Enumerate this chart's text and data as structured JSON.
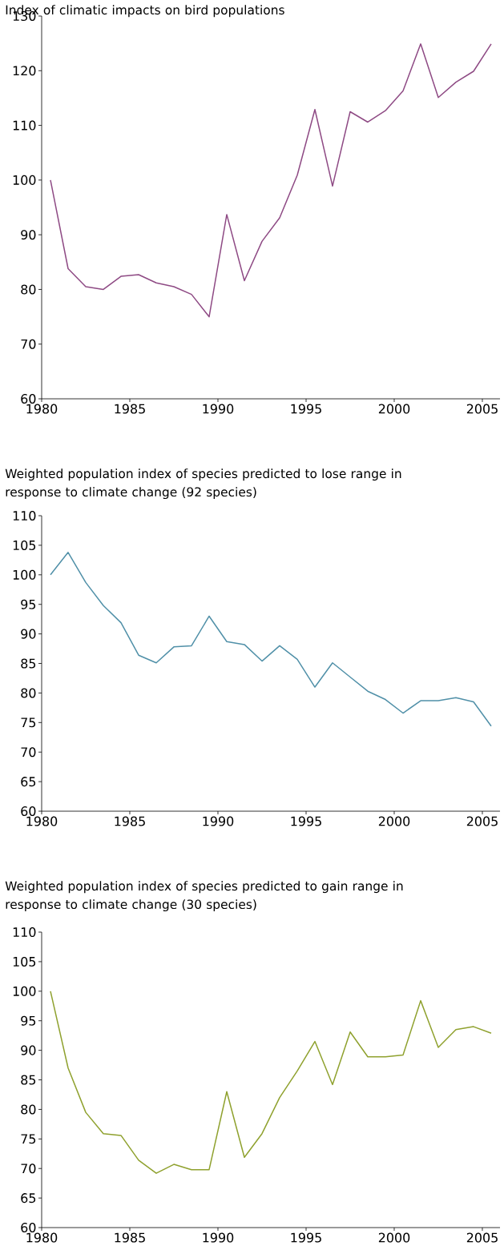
{
  "chart_data": [
    {
      "type": "line",
      "title": "Index of climatic impacts on bird populations",
      "x": [
        1980.5,
        1981.5,
        1982.5,
        1983.5,
        1984.5,
        1985.5,
        1986.5,
        1987.5,
        1988.5,
        1989.5,
        1990.5,
        1991.5,
        1992.5,
        1993.5,
        1994.5,
        1995.5,
        1996.5,
        1997.5,
        1998.5,
        1999.5,
        2000.5,
        2001.5,
        2002.5,
        2003.5,
        2004.5,
        2005.5
      ],
      "series": [
        {
          "color": "#8e4a84",
          "values": [
            100,
            83.8,
            80.5,
            80,
            82.4,
            82.7,
            81.2,
            80.5,
            79.1,
            75,
            93.7,
            81.6,
            88.8,
            93.1,
            100.9,
            112.9,
            98.9,
            112.5,
            110.6,
            112.7,
            116.3,
            124.9,
            115.1,
            117.9,
            119.9,
            124.9
          ]
        }
      ],
      "xlim": [
        1980,
        2006
      ],
      "xticks": [
        1980,
        1985,
        1990,
        1995,
        2000,
        2005
      ],
      "ylim": [
        60,
        130
      ],
      "yticks": [
        60,
        70,
        80,
        90,
        100,
        110,
        120,
        130
      ]
    },
    {
      "type": "line",
      "title": "Weighted population index of species predicted to lose range in response to climate change (92 species)",
      "x": [
        1980.5,
        1981.5,
        1982.5,
        1983.5,
        1984.5,
        1985.5,
        1986.5,
        1987.5,
        1988.5,
        1989.5,
        1990.5,
        1991.5,
        1992.5,
        1993.5,
        1994.5,
        1995.5,
        1996.5,
        1997.5,
        1998.5,
        1999.5,
        2000.5,
        2001.5,
        2002.5,
        2003.5,
        2004.5,
        2005.5
      ],
      "series": [
        {
          "color": "#5090a8",
          "values": [
            100,
            103.8,
            98.7,
            94.8,
            91.9,
            86.4,
            85.1,
            87.8,
            88,
            93,
            88.7,
            88.2,
            85.4,
            88,
            85.7,
            81,
            85.1,
            82.7,
            80.3,
            78.9,
            76.6,
            78.7,
            78.7,
            79.2,
            78.5,
            74.4
          ]
        }
      ],
      "xlim": [
        1980,
        2006
      ],
      "xticks": [
        1980,
        1985,
        1990,
        1995,
        2000,
        2005
      ],
      "ylim": [
        60,
        110
      ],
      "yticks": [
        60,
        65,
        70,
        75,
        80,
        85,
        90,
        95,
        100,
        105,
        110
      ]
    },
    {
      "type": "line",
      "title": "Weighted population index of species predicted to gain range in response to climate change (30 species)",
      "x": [
        1980.5,
        1981.5,
        1982.5,
        1983.5,
        1984.5,
        1985.5,
        1986.5,
        1987.5,
        1988.5,
        1989.5,
        1990.5,
        1991.5,
        1992.5,
        1993.5,
        1994.5,
        1995.5,
        1996.5,
        1997.5,
        1998.5,
        1999.5,
        2000.5,
        2001.5,
        2002.5,
        2003.5,
        2004.5,
        2005.5
      ],
      "series": [
        {
          "color": "#8fa12e",
          "values": [
            100,
            87,
            79.5,
            75.9,
            75.6,
            71.4,
            69.2,
            70.7,
            69.8,
            69.8,
            83,
            71.9,
            75.9,
            82,
            86.5,
            91.5,
            84.2,
            93.1,
            88.9,
            88.9,
            89.2,
            98.4,
            90.5,
            93.5,
            94,
            92.9
          ]
        }
      ],
      "xlim": [
        1980,
        2006
      ],
      "xticks": [
        1980,
        1985,
        1990,
        1995,
        2000,
        2005
      ],
      "ylim": [
        60,
        110
      ],
      "yticks": [
        60,
        65,
        70,
        75,
        80,
        85,
        90,
        95,
        100,
        105,
        110
      ]
    }
  ]
}
